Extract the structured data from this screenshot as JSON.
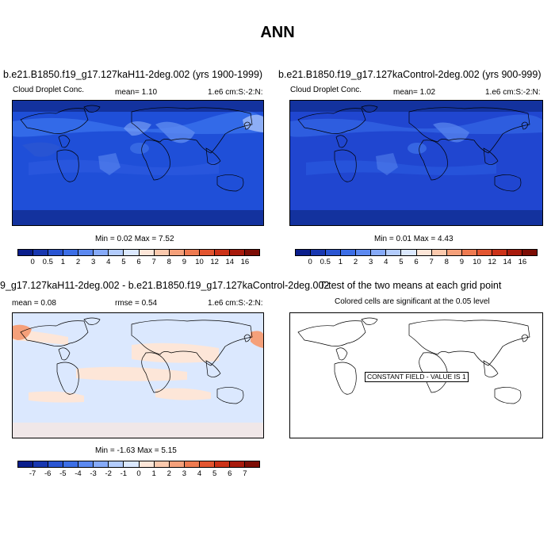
{
  "title": "ANN",
  "panels": [
    {
      "title": "b.e21.B1850.f19_g17.127kaH11-2deg.002 (yrs 1900-1999)",
      "left_label": "Cloud Droplet Conc.",
      "mean_text": "mean=  1.10",
      "units": "1.e6 cm:S:-2:N:",
      "minmax": "Min =  0.02 Max =  7.52",
      "colorbar_labels": [
        "0",
        "0.5",
        "1",
        "2",
        "3",
        "4",
        "5",
        "6",
        "7",
        "8",
        "9",
        "10",
        "12",
        "14",
        "16"
      ],
      "colorbar_colors": [
        "#0a1e8c",
        "#1837b0",
        "#2a55d2",
        "#3c6ee6",
        "#5c89f0",
        "#86aaf8",
        "#b3ccfc",
        "#dbe8fe",
        "#fde6d8",
        "#fbc9ad",
        "#f5a07a",
        "#ee7a50",
        "#e35530",
        "#cc3218",
        "#a81a0c",
        "#7d0d05"
      ]
    },
    {
      "title": "b.e21.B1850.f19_g17.127kaControl-2deg.002 (yrs 900-999)",
      "left_label": "Cloud Droplet Conc.",
      "mean_text": "mean=  1.02",
      "units": "1.e6 cm:S:-2:N:",
      "minmax": "Min =  0.01 Max =  4.43",
      "colorbar_labels": [
        "0",
        "0.5",
        "1",
        "2",
        "3",
        "4",
        "5",
        "6",
        "7",
        "8",
        "9",
        "10",
        "12",
        "14",
        "16"
      ],
      "colorbar_colors": [
        "#0a1e8c",
        "#1837b0",
        "#2a55d2",
        "#3c6ee6",
        "#5c89f0",
        "#86aaf8",
        "#b3ccfc",
        "#dbe8fe",
        "#fde6d8",
        "#fbc9ad",
        "#f5a07a",
        "#ee7a50",
        "#e35530",
        "#cc3218",
        "#a81a0c",
        "#7d0d05"
      ]
    },
    {
      "title": "9_g17.127kaH11-2deg.002 - b.e21.B1850.f19_g17.127kaControl-2deg.002",
      "mean_text": "mean =  0.08",
      "rmse_text": "rmse =  0.54",
      "units": "1.e6 cm:S:-2:N:",
      "minmax": "Min = -1.63 Max =  5.15",
      "colorbar_labels": [
        "-7",
        "-6",
        "-5",
        "-4",
        "-3",
        "-2",
        "-1",
        "0",
        "1",
        "2",
        "3",
        "4",
        "5",
        "6",
        "7"
      ],
      "colorbar_colors": [
        "#0a1e8c",
        "#1837b0",
        "#2a55d2",
        "#3c6ee6",
        "#5c89f0",
        "#86aaf8",
        "#b3ccfc",
        "#dbe8fe",
        "#fde6d8",
        "#fbc9ad",
        "#f5a07a",
        "#ee7a50",
        "#e35530",
        "#cc3218",
        "#a81a0c",
        "#7d0d05"
      ]
    },
    {
      "title": "T-test of the two means at each grid point",
      "subtitle": "Colored cells are significant at the 0.05 level",
      "constant_label": "CONSTANT FIELD - VALUE IS 1"
    }
  ],
  "colors": {
    "ocean_a": "#1f4fd8",
    "ocean_b": "#2046d0",
    "land_dark": "#13329e",
    "bright_blue": "#3b73ee",
    "diff_bg": "#dbe8fe",
    "diff_warm": "#fde6d8",
    "diff_hot": "#f5a07a"
  }
}
